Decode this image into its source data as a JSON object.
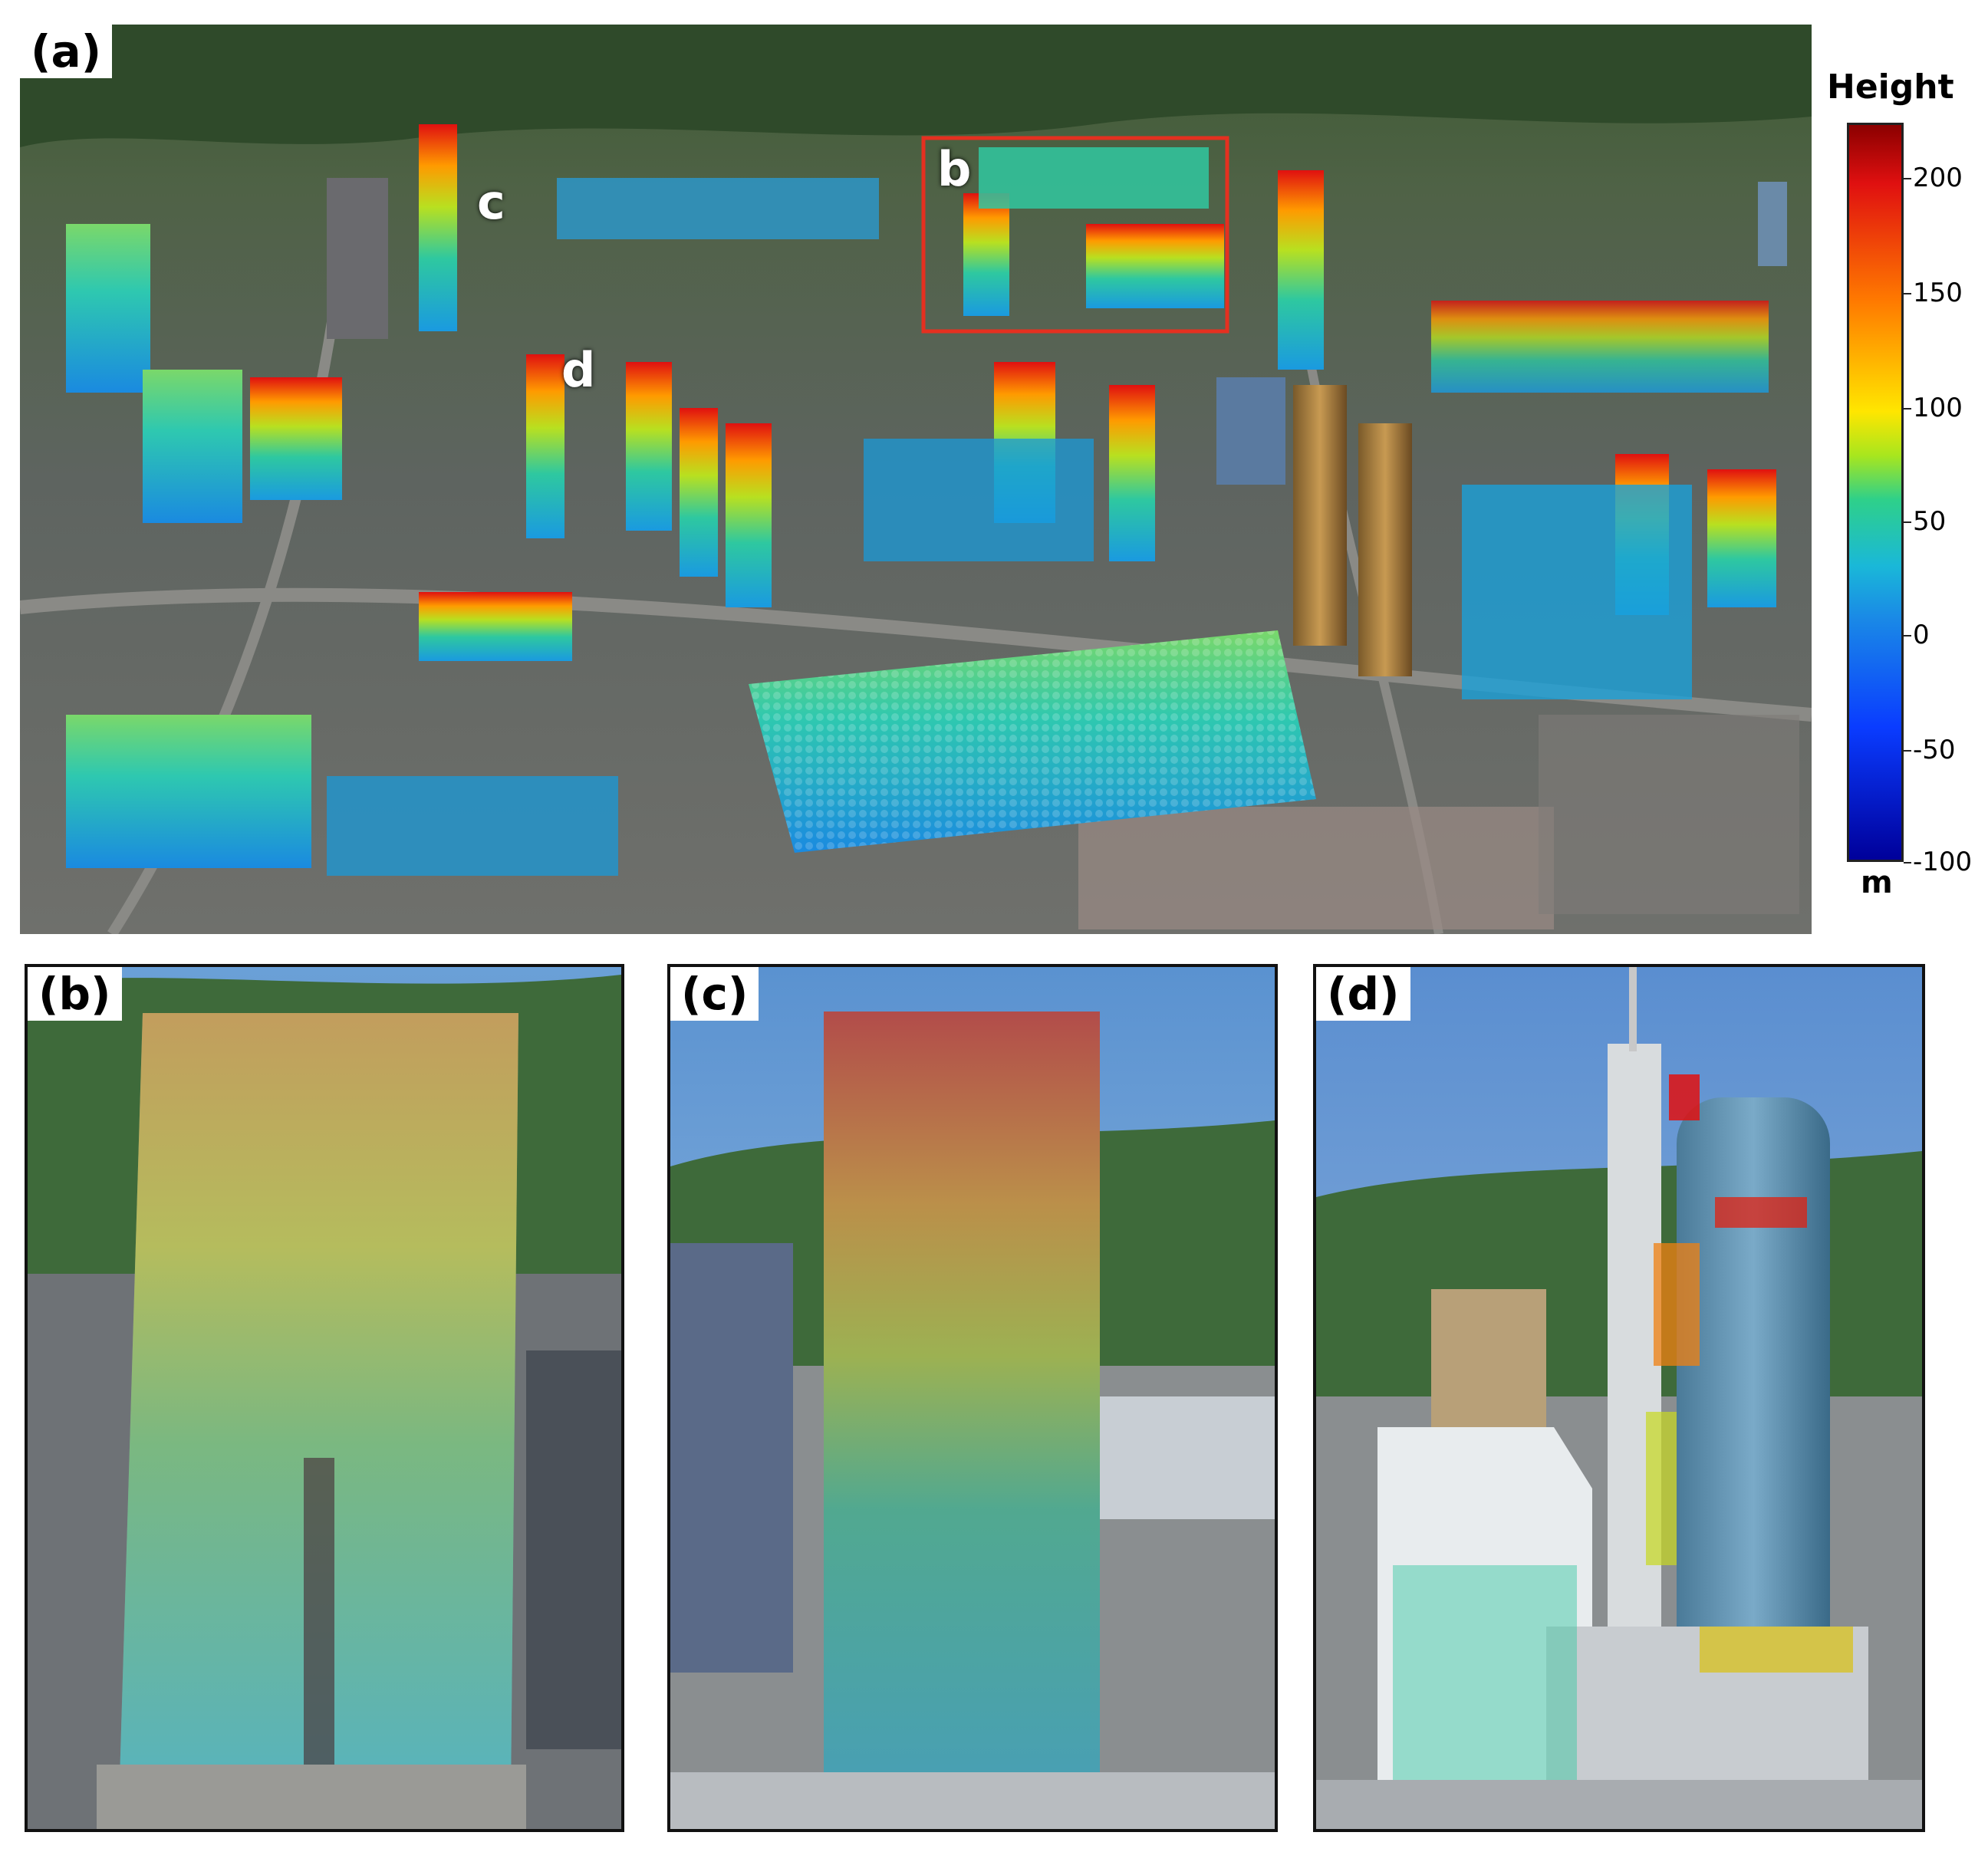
{
  "panels": {
    "a": {
      "label": "(a)"
    },
    "b": {
      "label": "(b)"
    },
    "c": {
      "label": "(c)"
    },
    "d": {
      "label": "(d)"
    }
  },
  "point_labels": {
    "b": "b",
    "c": "c",
    "d": "d"
  },
  "colorbar": {
    "title": "Height",
    "unit": "m",
    "ticks": [
      "200",
      "150",
      "100",
      "50",
      "0",
      "-50",
      "-100"
    ],
    "range": [
      -100,
      225
    ],
    "colors": [
      "#8b0000",
      "#e01010",
      "#ff7a00",
      "#ffe600",
      "#2ed08a",
      "#1a8ae6",
      "#00009a"
    ]
  },
  "highlight_box_color": "#e53020"
}
